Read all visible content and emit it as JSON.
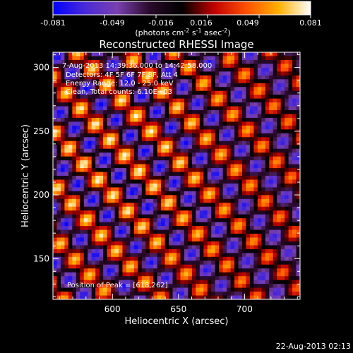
{
  "chart_data": {
    "type": "heatmap",
    "title": "Reconstructed RHESSI Image",
    "xlabel": "Heliocentric X (arcsec)",
    "ylabel": "Heliocentric Y (arcsec)",
    "xlim": [
      555,
      742
    ],
    "ylim": [
      118,
      312
    ],
    "xticks": [
      600,
      650,
      700
    ],
    "yticks": [
      150,
      200,
      250,
      300
    ],
    "colorbar": {
      "range": [
        -0.081,
        0.081
      ],
      "ticks": [
        "-0.081",
        "-0.049",
        "-0.016",
        "0.016",
        "0.049",
        "0.081"
      ],
      "unit_prefix": "(photons cm",
      "unit_exp1": "-2",
      "unit_mid": " s",
      "unit_exp2": "-1",
      "unit_mid2": " asec",
      "unit_exp3": "-2",
      "unit_suffix": ")",
      "colormap": [
        "#0000ff",
        "#4a2ad8",
        "#7a40b0",
        "#2a0a2a",
        "#000000",
        "#c00000",
        "#ff5000",
        "#ffb000",
        "#ffffff"
      ]
    },
    "annotations": {
      "time": "7-Aug-2013 14:39:36.000 to 14:42:58.000",
      "detectors": "Detectors: 4F 5F 6F 7F 8F, Att 4",
      "energy": "Energy Range: 12.0 - 25.0 keV",
      "clean": "Clean, Total counts: 6.10E+03",
      "peak": "Position of Peak = [618,262]"
    },
    "peak": [
      618,
      262
    ]
  },
  "footer": {
    "date": "22-Aug-2013 02:13"
  }
}
